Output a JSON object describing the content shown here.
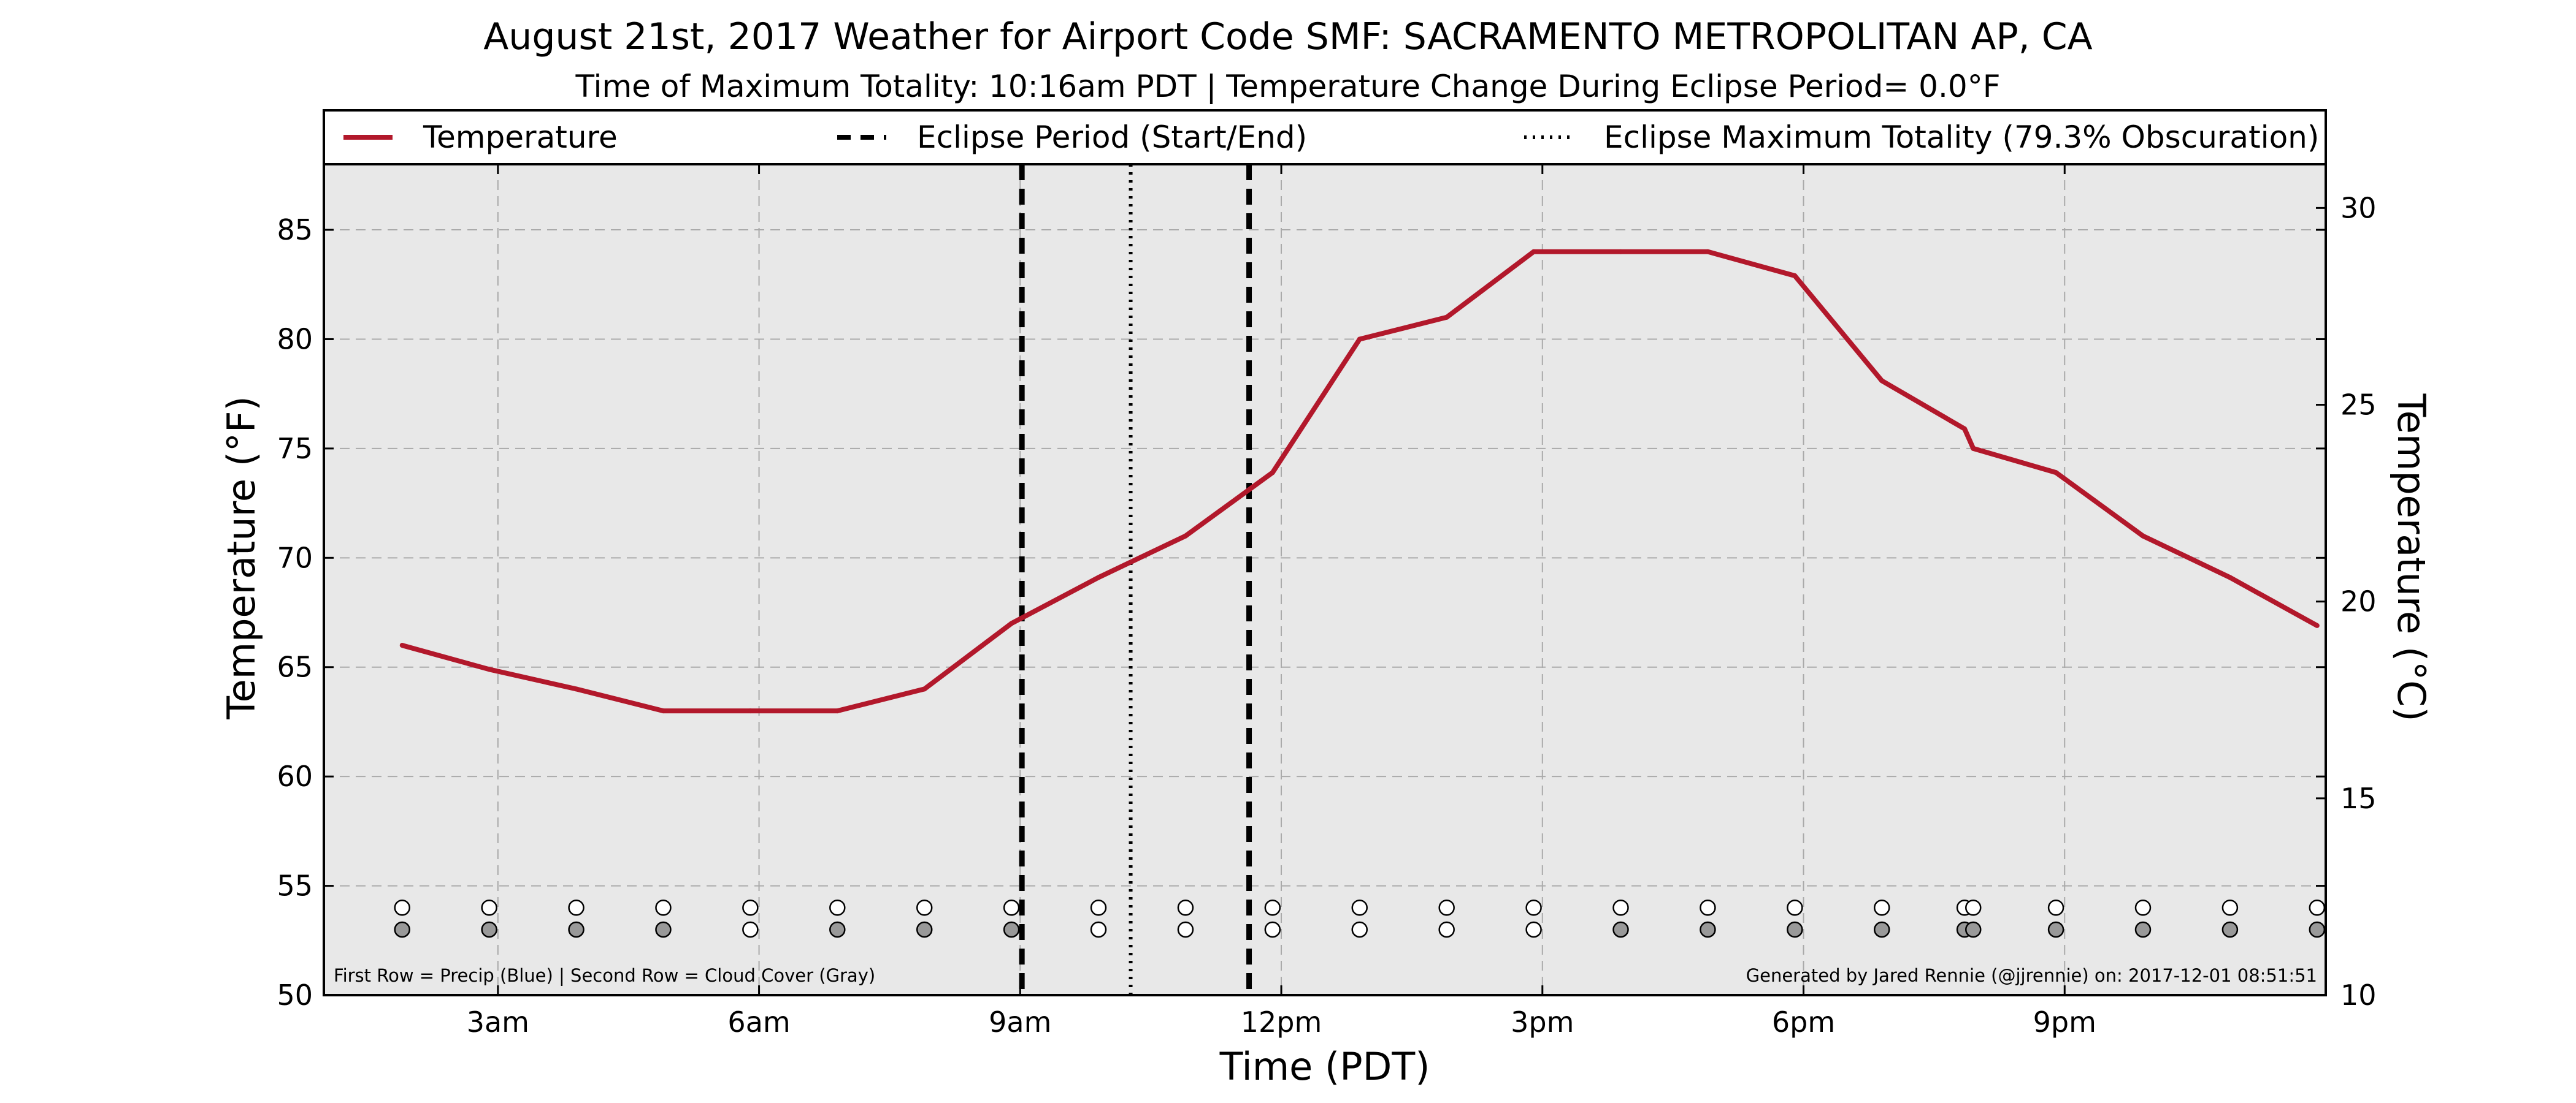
{
  "chart_data": {
    "type": "line",
    "title": "August 21st, 2017 Weather for Airport Code SMF: SACRAMENTO METROPOLITAN AP, CA",
    "subtitle": "Time of Maximum Totality: 10:16am PDT | Temperature Change During Eclipse Period= 0.0°F",
    "xlabel": "Time (PDT)",
    "ylabel": "Temperature (°F)",
    "ylabel_right": "Temperature (°C)",
    "xlim": [
      1.0,
      24.0
    ],
    "ylim": [
      50,
      88
    ],
    "ylim_right_celsius": [
      10,
      31.11
    ],
    "x_ticks": [
      {
        "value": 3,
        "label": "3am"
      },
      {
        "value": 6,
        "label": "6am"
      },
      {
        "value": 9,
        "label": "9am"
      },
      {
        "value": 12,
        "label": "12pm"
      },
      {
        "value": 15,
        "label": "3pm"
      },
      {
        "value": 18,
        "label": "6pm"
      },
      {
        "value": 21,
        "label": "9pm"
      }
    ],
    "y_ticks": [
      50,
      55,
      60,
      65,
      70,
      75,
      80,
      85
    ],
    "y_ticks_right": [
      10,
      15,
      20,
      25,
      30
    ],
    "grid": true,
    "legend": {
      "placement": "top",
      "entries": [
        {
          "label": "Temperature",
          "style": "solid"
        },
        {
          "label": "Eclipse Period (Start/End)",
          "style": "dashed"
        },
        {
          "label": "Eclipse Maximum Totality (79.3% Obscuration)",
          "style": "dotted"
        }
      ]
    },
    "series": [
      {
        "name": "Temperature",
        "color": "#b2182b",
        "x": [
          1.9,
          2.9,
          3.9,
          4.9,
          5.9,
          6.9,
          7.9,
          8.9,
          9.9,
          10.9,
          11.9,
          12.9,
          13.9,
          14.9,
          15.9,
          16.9,
          17.9,
          18.9,
          19.85,
          19.95,
          20.9,
          21.9,
          22.9,
          23.9
        ],
        "y": [
          66,
          64.9,
          64,
          63,
          63,
          63,
          64,
          67,
          69.1,
          71,
          73.9,
          80,
          81,
          84,
          84,
          84,
          82.9,
          78.1,
          75.9,
          75,
          73.9,
          71,
          69.1,
          66.9
        ]
      }
    ],
    "eclipse": {
      "start": 9.02,
      "end": 11.63,
      "max": 10.27,
      "color": "#000000"
    },
    "markers": {
      "precip_row_y": 54,
      "cloud_row_y": 53,
      "empty_color": "#ffffff",
      "cloud_color": "#999999",
      "x": [
        1.9,
        2.9,
        3.9,
        4.9,
        5.9,
        6.9,
        7.9,
        8.9,
        9.9,
        10.9,
        11.9,
        12.9,
        13.9,
        14.9,
        15.9,
        16.9,
        17.9,
        18.9,
        19.85,
        19.95,
        20.9,
        21.9,
        22.9,
        23.9
      ],
      "cloud_filled": [
        true,
        true,
        true,
        true,
        false,
        true,
        true,
        true,
        false,
        false,
        false,
        false,
        false,
        false,
        true,
        true,
        true,
        true,
        true,
        true,
        true,
        true,
        true,
        true
      ]
    },
    "footnote_left": "First Row = Precip (Blue) | Second Row = Cloud Cover (Gray)",
    "footnote_right": "Generated by Jared Rennie (@jjrennie) on: 2017-12-01 08:51:51",
    "colors": {
      "plot_background": "#e8e8e8",
      "grid": "#aaaaaa"
    }
  }
}
